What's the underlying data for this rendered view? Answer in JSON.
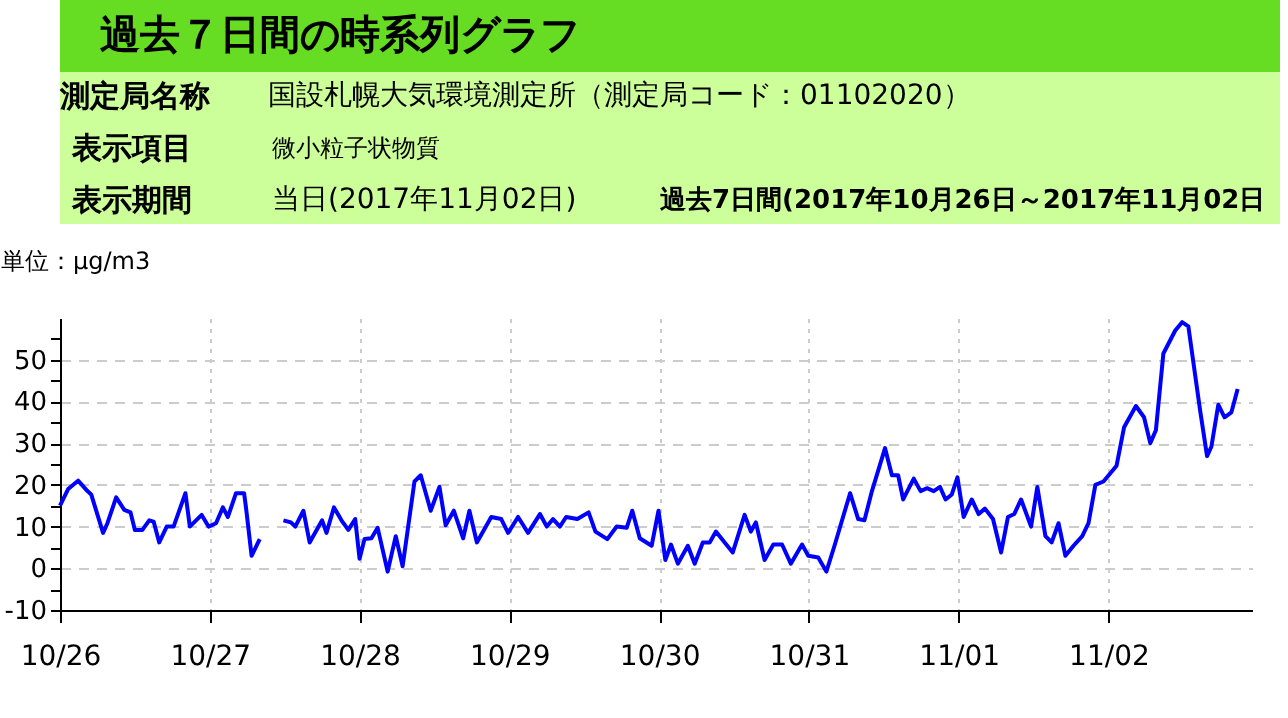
{
  "chart_data": {
    "type": "line",
    "title": "過去７日間の時系列グラフ",
    "ylabel": "単位：μg/m3",
    "annotations": [
      "測定局名称",
      "国設札幌大気環境測定所（測定局コード：01102020）",
      "表示項目",
      "微小粒子状物質",
      "表示期間",
      "当日(2017年11月02日)",
      "過去7日間(2017年10月26日～2017年11月02日"
    ],
    "x": [
      "2017-10-26T00:00",
      "2017-10-26T01:18",
      "2017-10-26T02:54",
      "2017-10-26T04:24",
      "2017-10-26T05:00",
      "2017-10-26T06:54",
      "2017-10-26T07:36",
      "2017-10-26T09:00",
      "2017-10-26T10:18",
      "2017-10-26T11:18",
      "2017-10-26T12:00",
      "2017-10-26T13:12",
      "2017-10-26T14:18",
      "2017-10-26T15:00",
      "2017-10-26T15:54",
      "2017-10-26T17:06",
      "2017-10-26T18:12",
      "2017-10-26T20:06",
      "2017-10-26T20:48",
      "2017-10-26T22:42",
      "2017-10-26T23:48",
      "2017-10-27T01:00",
      "2017-10-27T02:06",
      "2017-10-27T02:54",
      "2017-10-27T04:12",
      "2017-10-27T05:30",
      "2017-10-27T05:48",
      "2017-10-27T06:42",
      "2017-10-27T08:00",
      "2017-10-27T10:00",
      "2017-10-27T11:48",
      "2017-10-27T13:00",
      "2017-10-27T13:42",
      "2017-10-27T15:00",
      "2017-10-27T16:00",
      "2017-10-27T18:00",
      "2017-10-27T18:42",
      "2017-10-27T19:54",
      "2017-10-27T21:06",
      "2017-10-27T22:12",
      "2017-10-27T23:18",
      "2017-10-28T00:00",
      "2017-10-28T00:48",
      "2017-10-28T01:54",
      "2017-10-28T02:54",
      "2017-10-28T04:30",
      "2017-10-28T05:48",
      "2017-10-28T06:54",
      "2017-10-28T08:48",
      "2017-10-28T09:48",
      "2017-10-28T11:24",
      "2017-10-28T12:48",
      "2017-10-28T13:48",
      "2017-10-28T15:06",
      "2017-10-28T16:36",
      "2017-10-28T17:36",
      "2017-10-28T18:48",
      "2017-10-28T21:06",
      "2017-10-28T22:42",
      "2017-10-28T23:48",
      "2017-10-29T01:24",
      "2017-10-29T03:00",
      "2017-10-29T04:54",
      "2017-10-29T06:00",
      "2017-10-29T07:00",
      "2017-10-29T08:06",
      "2017-10-29T09:06",
      "2017-10-29T10:54",
      "2017-10-29T12:42",
      "2017-10-29T13:48",
      "2017-10-29T15:42",
      "2017-10-29T17:12",
      "2017-10-29T18:48",
      "2017-10-29T19:42",
      "2017-10-29T20:54",
      "2017-10-29T22:48",
      "2017-10-29T23:54",
      "2017-10-30T01:00",
      "2017-10-30T01:54",
      "2017-10-30T03:00",
      "2017-10-30T04:36",
      "2017-10-30T05:42",
      "2017-10-30T07:00",
      "2017-10-30T08:06",
      "2017-10-30T09:06",
      "2017-10-30T10:30",
      "2017-10-30T11:48",
      "2017-10-30T13:42",
      "2017-10-30T14:42",
      "2017-10-30T15:30",
      "2017-10-30T16:54",
      "2017-10-30T18:18",
      "2017-10-30T19:42",
      "2017-10-30T21:06",
      "2017-10-30T22:54",
      "2017-10-30T23:54",
      "2017-10-31T01:30",
      "2017-10-31T02:48",
      "2017-10-31T04:06",
      "2017-10-31T06:36",
      "2017-10-31T07:54",
      "2017-10-31T08:54",
      "2017-10-31T10:06",
      "2017-10-31T12:12",
      "2017-10-31T13:18",
      "2017-10-31T14:18",
      "2017-10-31T15:06",
      "2017-10-31T16:48",
      "2017-10-31T17:54",
      "2017-10-31T18:54",
      "2017-10-31T20:00",
      "2017-10-31T21:00",
      "2017-10-31T21:54",
      "2017-10-31T22:54",
      "2017-10-31T23:48",
      "2017-11-01T00:48",
      "2017-11-01T02:06",
      "2017-11-01T03:12",
      "2017-11-01T04:12",
      "2017-11-01T05:30",
      "2017-11-01T06:48",
      "2017-11-01T07:54",
      "2017-11-01T08:54",
      "2017-11-01T10:00",
      "2017-11-01T11:36",
      "2017-11-01T12:36",
      "2017-11-01T13:54",
      "2017-11-01T14:54",
      "2017-11-01T16:00",
      "2017-11-01T17:06",
      "2017-11-01T18:24",
      "2017-11-01T19:48",
      "2017-11-01T20:48",
      "2017-11-01T21:54",
      "2017-11-01T23:12",
      "2017-11-02T00:12",
      "2017-11-02T01:18",
      "2017-11-02T02:30",
      "2017-11-02T04:24",
      "2017-11-02T05:42",
      "2017-11-02T06:42",
      "2017-11-02T07:36",
      "2017-11-02T08:48",
      "2017-11-02T10:42",
      "2017-11-02T11:48",
      "2017-11-02T12:48",
      "2017-11-02T13:54",
      "2017-11-02T14:42",
      "2017-11-02T15:48",
      "2017-11-02T16:30",
      "2017-11-02T17:36",
      "2017-11-02T18:36",
      "2017-11-02T19:42",
      "2017-11-02T20:42"
    ],
    "series": [
      {
        "color": "#0000ff",
        "values": [
          15,
          19,
          21,
          18.5,
          17.7,
          8.5,
          10.8,
          17,
          14,
          13.4,
          9.2,
          9.2,
          11.5,
          11.2,
          6.2,
          10,
          10,
          18,
          10,
          12.8,
          10,
          10.8,
          14.6,
          12.3,
          18,
          18,
          14.6,
          3,
          7,
          null,
          11.5,
          11,
          10,
          13.8,
          6.2,
          11.5,
          8.5,
          14.6,
          11.5,
          9.2,
          11.8,
          2.3,
          7,
          7.2,
          9.7,
          -0.8,
          7.7,
          0.5,
          20.8,
          22.3,
          13.8,
          19.5,
          10.3,
          13.8,
          7.2,
          13.8,
          6.2,
          12.3,
          11.8,
          8.5,
          12.3,
          8.5,
          13,
          10,
          11.8,
          10,
          12.3,
          11.8,
          13.4,
          8.8,
          7,
          10,
          9.7,
          13.8,
          7.2,
          5.4,
          13.8,
          2,
          5.7,
          1.1,
          5.4,
          1.1,
          6.2,
          6.2,
          8.8,
          6.2,
          3.8,
          12.8,
          8.8,
          11,
          2,
          5.7,
          5.7,
          1.1,
          5.7,
          3,
          2.6,
          -0.8,
          5.4,
          18,
          11.8,
          11.5,
          18.5,
          28.8,
          22.3,
          22.3,
          16.5,
          21.5,
          18.5,
          19.2,
          18.5,
          19.5,
          16.5,
          17.7,
          21.8,
          12.3,
          16.5,
          13,
          14.3,
          11.8,
          3.8,
          12.3,
          13,
          16.5,
          10,
          19.5,
          7.7,
          6.2,
          10.8,
          3,
          5.4,
          7.7,
          10.8,
          20,
          20.8,
          22.6,
          24.6,
          33.8,
          38.9,
          36.2,
          30,
          33.1,
          51.5,
          57,
          59,
          58,
          46.2,
          37.7,
          26.9,
          29.2,
          39.2,
          36.2,
          37.4,
          43
        ]
      }
    ],
    "xlim": [
      "2017-10-26T00:00",
      "2017-11-02T23:00"
    ],
    "xticks": [
      {
        "value": "2017-10-26",
        "label": "10/26"
      },
      {
        "value": "2017-10-27",
        "label": "10/27"
      },
      {
        "value": "2017-10-28",
        "label": "10/28"
      },
      {
        "value": "2017-10-29",
        "label": "10/29"
      },
      {
        "value": "2017-10-30",
        "label": "10/30"
      },
      {
        "value": "2017-10-31",
        "label": "10/31"
      },
      {
        "value": "2017-11-01",
        "label": "11/01"
      },
      {
        "value": "2017-11-02",
        "label": "11/02"
      }
    ],
    "ylim": [
      -10,
      60
    ],
    "yticks": [
      -10,
      {
        "value": -5,
        "label": null
      },
      0,
      {
        "value": 5,
        "label": null
      },
      10,
      {
        "value": 15,
        "label": null
      },
      20,
      {
        "value": 25,
        "label": null
      },
      30,
      {
        "value": 35,
        "label": null
      },
      40,
      {
        "value": 45,
        "label": null
      },
      50,
      {
        "value": 55,
        "label": null
      }
    ],
    "grid": true,
    "marker": "none",
    "line_style": "solid"
  }
}
